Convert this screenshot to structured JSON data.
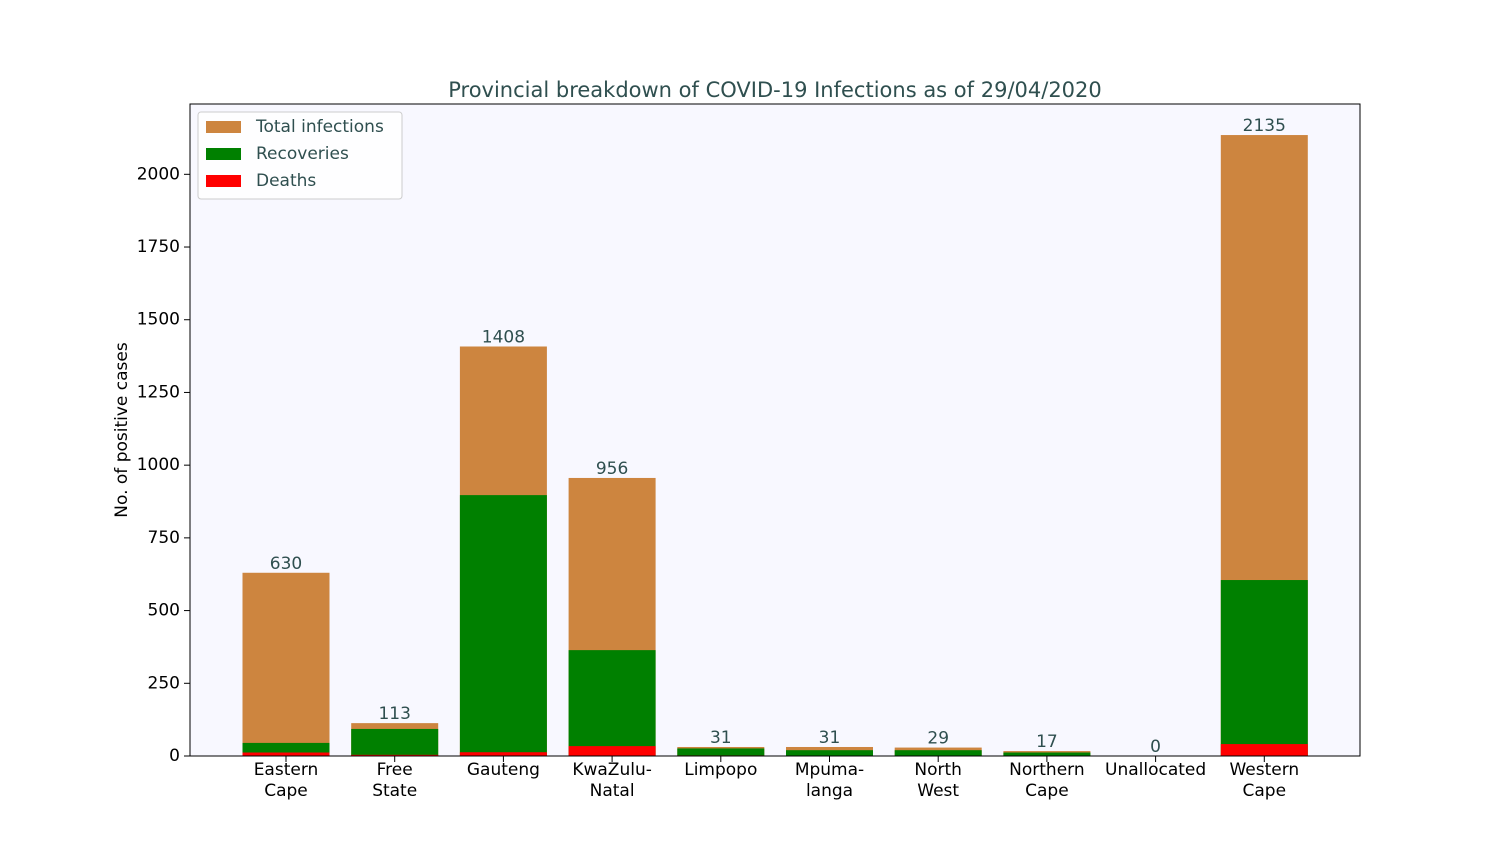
{
  "chart_data": {
    "type": "bar",
    "title": "Provincial breakdown of COVID-19 Infections as of 29/04/2020",
    "ylabel": "No. of positive cases",
    "categories": [
      "Eastern\nCape",
      "Free\nState",
      "Gauteng",
      "KwaZulu-\nNatal",
      "Limpopo",
      "Mpuma-\nlanga",
      "North\nWest",
      "Northern\nCape",
      "Unallocated",
      "Western\nCape"
    ],
    "series": [
      {
        "name": "Total infections",
        "color": "#cd853f",
        "values": [
          630,
          113,
          1408,
          956,
          31,
          31,
          29,
          17,
          0,
          2135
        ]
      },
      {
        "name": "Recoveries",
        "color": "#008000",
        "values": [
          45,
          93,
          897,
          364,
          26,
          20,
          20,
          12,
          0,
          605
        ]
      },
      {
        "name": "Deaths",
        "color": "#ff0000",
        "values": [
          12,
          4,
          13,
          34,
          2,
          0,
          0,
          1,
          0,
          41
        ]
      }
    ],
    "ylim": [
      0,
      2241.75
    ],
    "yticks": [
      0,
      250,
      500,
      750,
      1000,
      1250,
      1500,
      1750,
      2000
    ],
    "legend": "upper left",
    "background": "#f8f8ff"
  }
}
